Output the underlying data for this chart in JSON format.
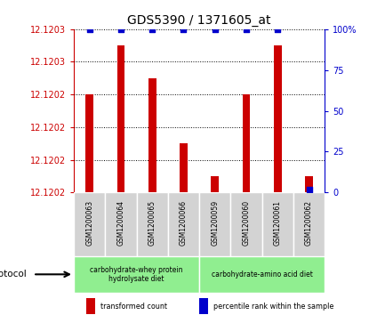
{
  "title": "GDS5390 / 1371605_at",
  "samples": [
    "GSM1200063",
    "GSM1200064",
    "GSM1200065",
    "GSM1200066",
    "GSM1200059",
    "GSM1200060",
    "GSM1200061",
    "GSM1200062"
  ],
  "bar_values": [
    12.12024,
    12.12027,
    12.12025,
    12.12021,
    12.12019,
    12.12024,
    12.12027,
    12.12019
  ],
  "percentile_values": [
    100,
    100,
    100,
    100,
    100,
    100,
    100,
    2
  ],
  "bar_color": "#cc0000",
  "percentile_color": "#0000cc",
  "ylim_left": [
    12.12018,
    12.12028
  ],
  "ylim_right": [
    0,
    100
  ],
  "yticks_left": [
    12.12018,
    12.1202,
    12.12022,
    12.12024,
    12.12026,
    12.12028
  ],
  "yticks_right": [
    0,
    25,
    50,
    75,
    100
  ],
  "ylabel_left_color": "#cc0000",
  "ylabel_right_color": "#0000cc",
  "groups": [
    {
      "label": "carbohydrate-whey protein\nhydrolysate diet",
      "start": 0,
      "end": 4,
      "color": "#90ee90"
    },
    {
      "label": "carbohydrate-amino acid diet",
      "start": 4,
      "end": 8,
      "color": "#90ee90"
    }
  ],
  "protocol_label": "protocol",
  "legend_items": [
    {
      "color": "#cc0000",
      "label": "transformed count"
    },
    {
      "color": "#0000cc",
      "label": "percentile rank within the sample"
    }
  ],
  "background_color": "#ffffff",
  "plot_bg_color": "#ffffff",
  "bar_width": 0.25,
  "sample_box_color": "#d3d3d3",
  "group_box_lighter": "#c8f0c8",
  "title_fontsize": 10,
  "tick_fontsize": 7,
  "sample_fontsize": 5.5
}
